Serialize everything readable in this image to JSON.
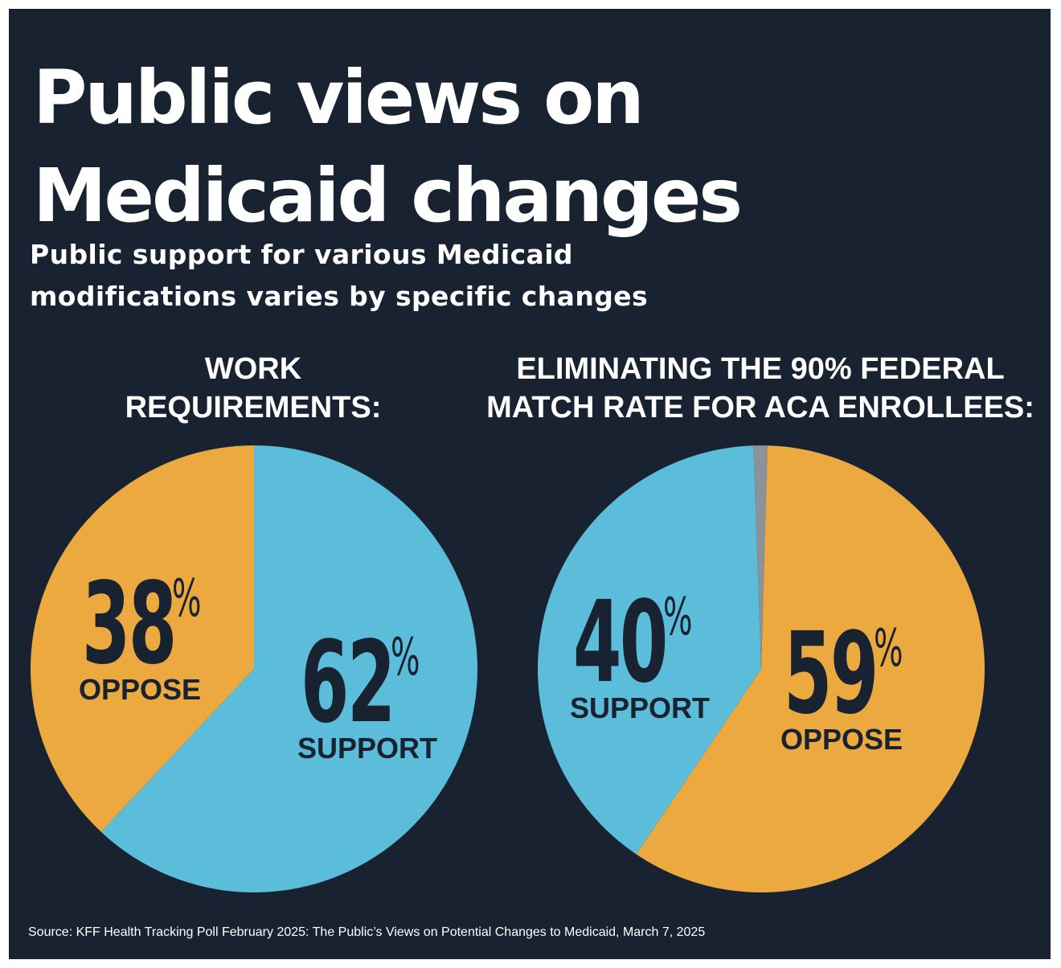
{
  "title": "Public views on",
  "title_line2": "Medicaid changes",
  "subtitle": "Public support for various Medicaid",
  "subtitle_line2": "modifications varies by specific changes",
  "source": "Source: KFF Health Tracking Poll February 2025: The Public’s Views on Potential Changes to Medicaid, March 7, 2025",
  "colors": {
    "background": "#182230",
    "support": "#5BBDD9",
    "oppose": "#EBA93F",
    "other": "#8C9299",
    "label_text": "#182230"
  },
  "chart_data": [
    {
      "type": "pie",
      "title": "WORK\nREQUIREMENTS:",
      "slices": [
        {
          "name": "SUPPORT",
          "value": 62,
          "label": "62",
          "color": "#5BBDD9"
        },
        {
          "name": "OPPOSE",
          "value": 38,
          "label": "38",
          "color": "#EBA93F"
        }
      ]
    },
    {
      "type": "pie",
      "title": "ELIMINATING THE 90% FEDERAL\nMATCH RATE FOR ACA ENROLLEES:",
      "slices": [
        {
          "name": "OPPOSE",
          "value": 59,
          "label": "59",
          "color": "#EBA93F"
        },
        {
          "name": "SUPPORT",
          "value": 40,
          "label": "40",
          "color": "#5BBDD9"
        },
        {
          "name": "",
          "value": 1,
          "label": "",
          "color": "#8C9299"
        }
      ]
    }
  ]
}
